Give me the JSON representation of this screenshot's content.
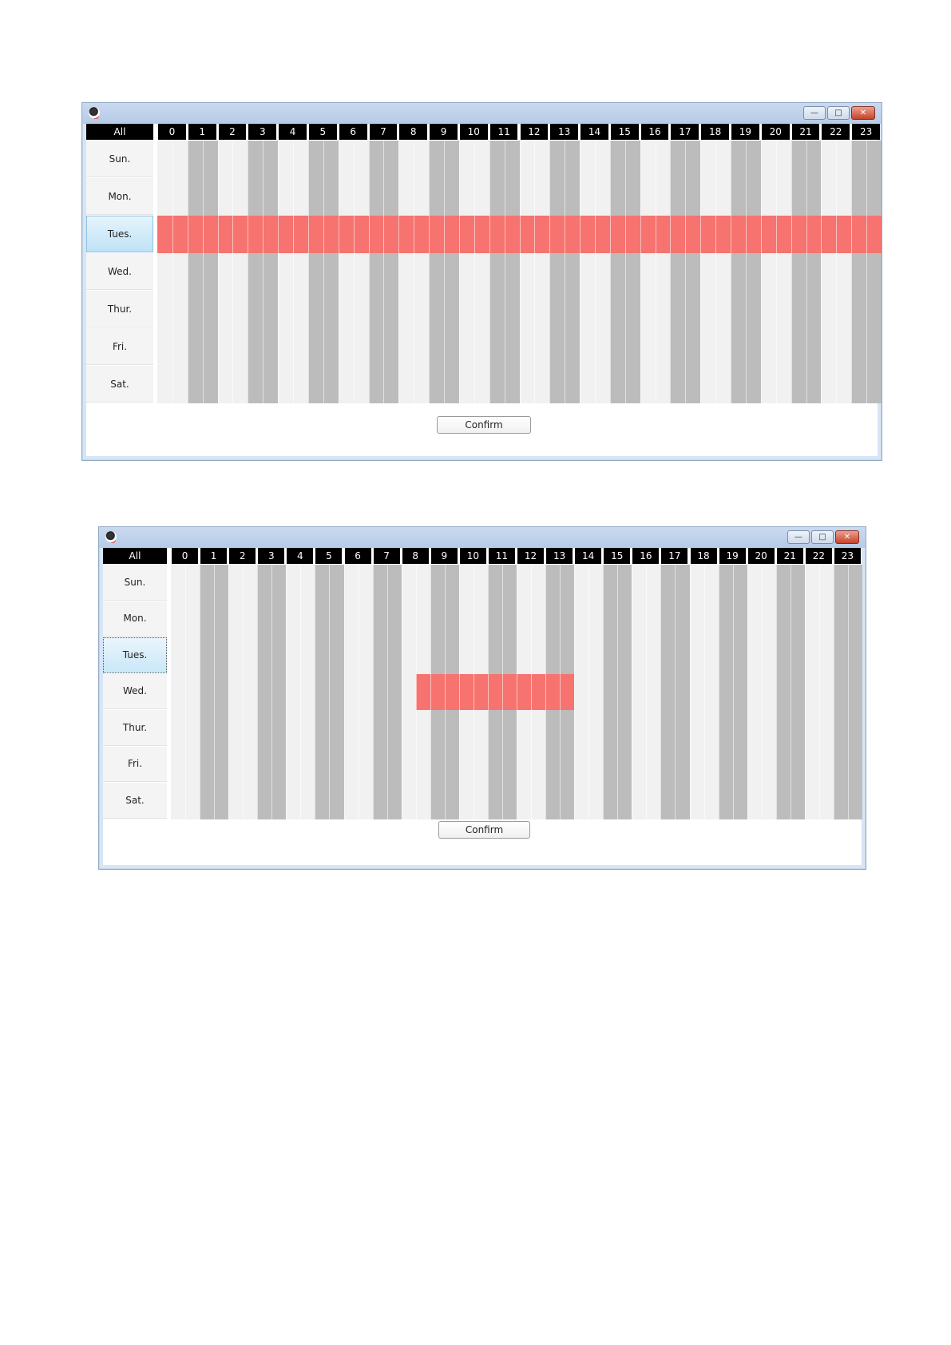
{
  "days": [
    "Sun.",
    "Mon.",
    "Tues.",
    "Wed.",
    "Thur.",
    "Fri.",
    "Sat."
  ],
  "hours": [
    "0",
    "1",
    "2",
    "3",
    "4",
    "5",
    "6",
    "7",
    "8",
    "9",
    "10",
    "11",
    "12",
    "13",
    "14",
    "15",
    "16",
    "17",
    "18",
    "19",
    "20",
    "21",
    "22",
    "23"
  ],
  "colors": {
    "selected": "#f6736f",
    "light": "#f1f1f1",
    "dark": "#bcbcbc",
    "header": "#000000"
  },
  "icons": [
    "app-icon",
    "minimize-icon",
    "maximize-icon",
    "close-icon"
  ],
  "dialogs": [
    {
      "all_label": "All",
      "confirm_label": "Confirm",
      "highlighted_day": "Tues.",
      "selection": {
        "day": "Tues.",
        "from_slot": 0,
        "to_slot": 47
      }
    },
    {
      "all_label": "All",
      "confirm_label": "Confirm",
      "highlighted_day": "Tues.",
      "selection": {
        "day": "Wed.",
        "from_slot": 17,
        "to_slot": 27
      }
    }
  ]
}
